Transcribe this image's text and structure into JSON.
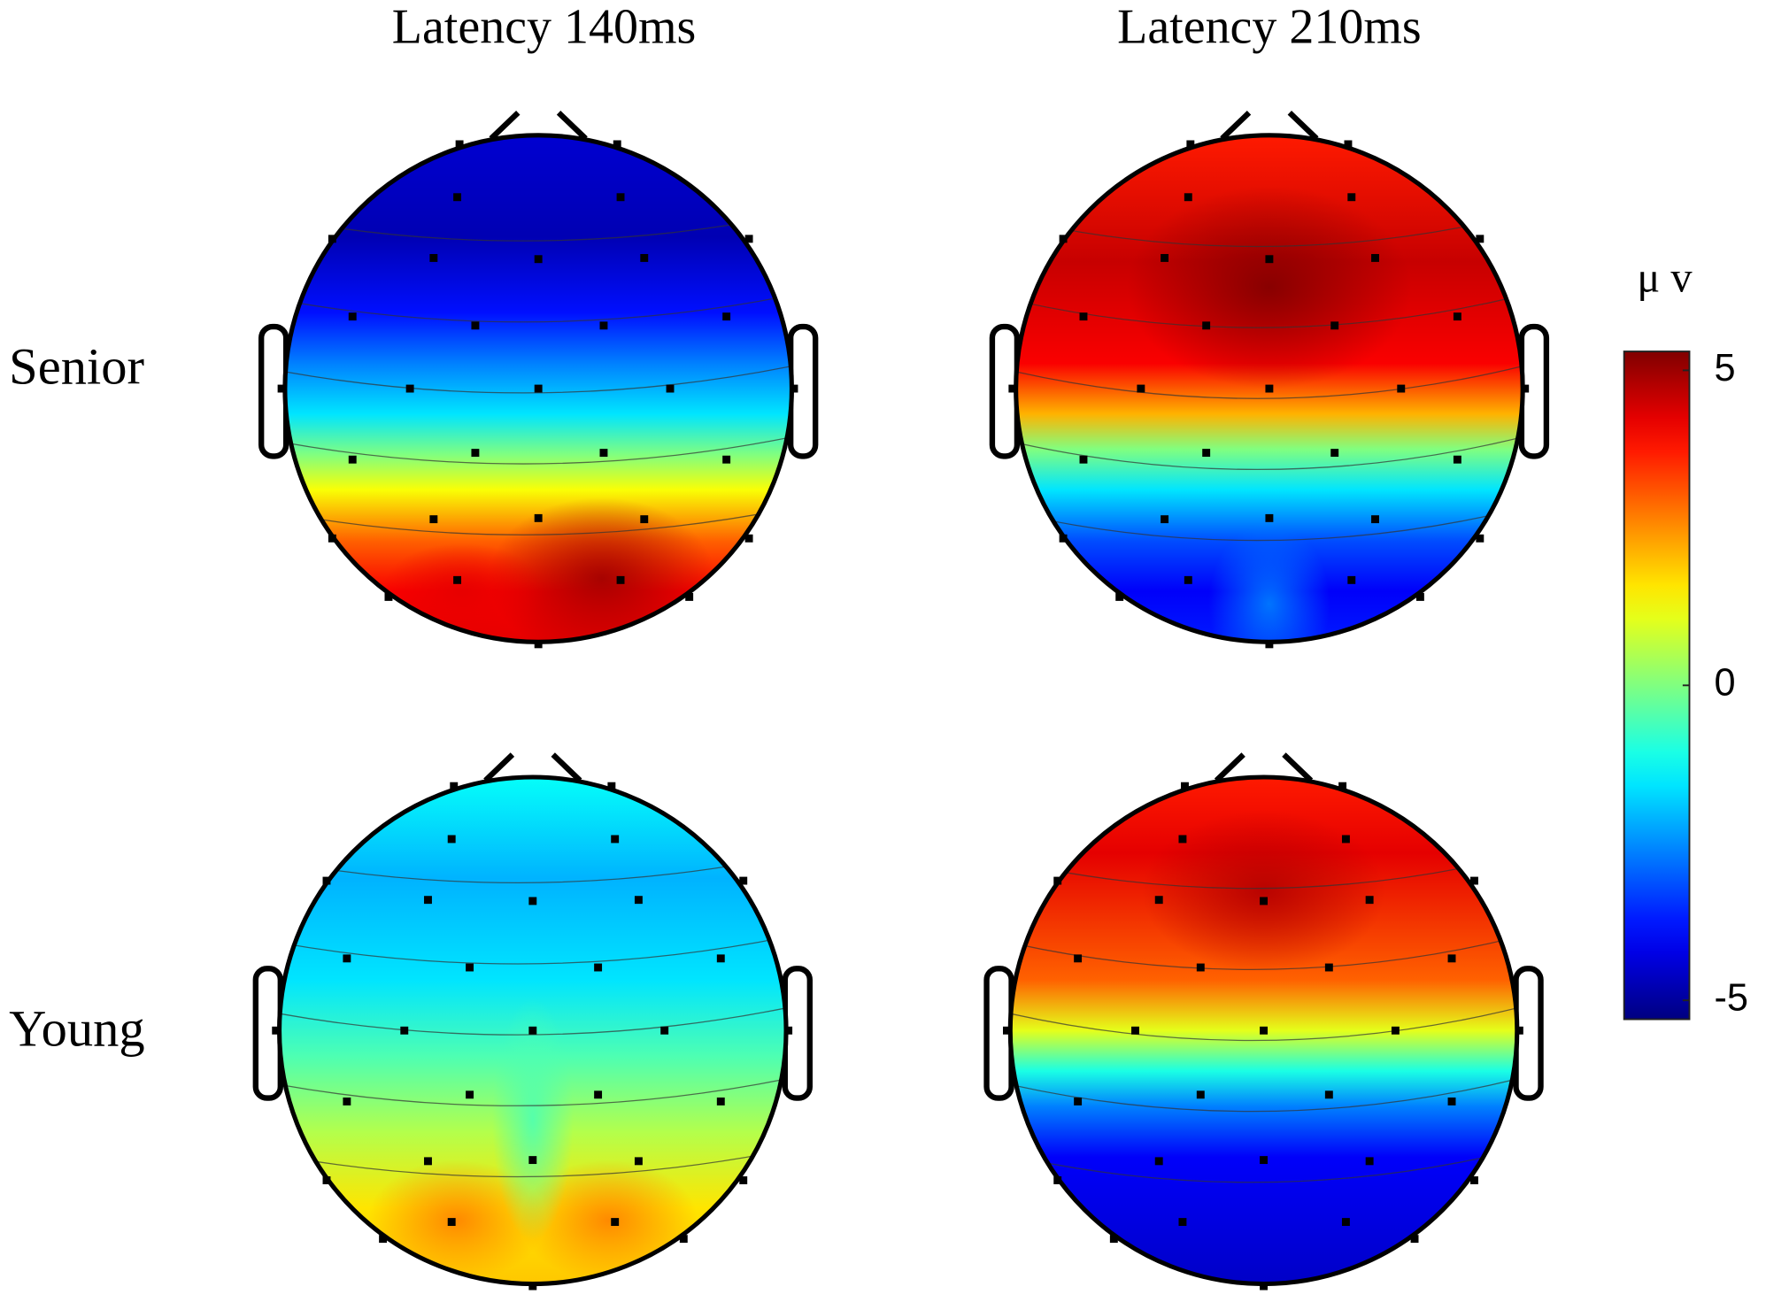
{
  "chart_data": {
    "type": "topomap",
    "columns": [
      "Latency 140ms",
      "Latency 210ms"
    ],
    "rows": [
      "Senior",
      "Young"
    ],
    "colorbar": {
      "label": "μ v",
      "colormap": "jet",
      "ylim": [
        -5.3,
        5.3
      ],
      "yticks": [
        5,
        0,
        -5
      ]
    }
  }
}
